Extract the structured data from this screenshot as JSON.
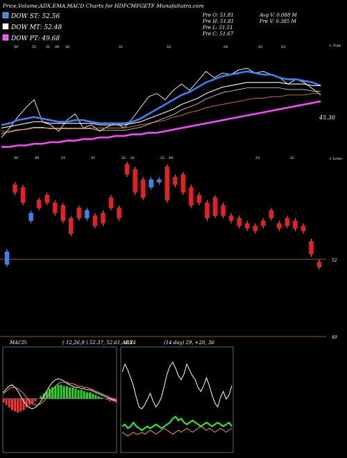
{
  "header": {
    "title": "Price,Volume,ADX,EMA,MACD Charts for HDFCMFGETF MunafaSutra.com",
    "legend": [
      {
        "label": "DOW ST: 52.56",
        "color": "#3b82f6"
      },
      {
        "label": "DOW MT: 52.48",
        "color": "#ffffff"
      },
      {
        "label": "DOW PT: 49.68",
        "color": "#ff44ff"
      }
    ],
    "stats": {
      "prev_open": "Pre  O: 51.81",
      "prev_high": "Pre  H: 51.81",
      "prev_low": "Pre  L: 51.51",
      "prev_close": "Pre  C: 51.67",
      "avg_volume": "Avg V: 0.088  M",
      "prev_volume": "Pre  V: 0.385 M"
    }
  },
  "chart_data": [
    {
      "type": "line",
      "name": "price-ema",
      "price_label": "45.30",
      "top_ticks": [
        "50",
        "52",
        "51",
        "50",
        "50",
        "51",
        "53",
        "54",
        "53",
        "53"
      ],
      "top_right_label": "< Tops",
      "bottom_ticks": [
        "50",
        "49",
        "51",
        "51",
        "52",
        "51",
        "52",
        "54",
        "53",
        "52"
      ],
      "bottom_right_label": "< Lows",
      "series": [
        {
          "role": "close",
          "color": "#ffffff",
          "values": [
            50.2,
            50.8,
            51.5,
            52.1,
            52.6,
            51.2,
            51.0,
            50.6,
            51.3,
            51.7,
            50.8,
            51.0,
            50.6,
            50.9,
            51.1,
            50.8,
            51.4,
            52.1,
            52.8,
            53.0,
            52.6,
            53.2,
            53.6,
            53.2,
            53.8,
            54.4,
            54.0,
            54.3,
            54.2,
            54.5,
            54.6,
            54.3,
            54.4,
            54.2,
            54.0,
            53.6,
            53.9,
            53.7,
            53.3,
            52.9
          ]
        },
        {
          "role": "ema-short",
          "color": "#3b82f6",
          "values": [
            51.0,
            51.1,
            51.3,
            51.4,
            51.5,
            51.4,
            51.3,
            51.2,
            51.2,
            51.3,
            51.3,
            51.2,
            51.1,
            51.1,
            51.1,
            51.1,
            51.2,
            51.4,
            51.7,
            52.0,
            52.3,
            52.6,
            52.9,
            53.1,
            53.4,
            53.7,
            53.9,
            54.1,
            54.2,
            54.3,
            54.4,
            54.3,
            54.2,
            54.2,
            54.0,
            53.9,
            53.9,
            53.8,
            53.7,
            53.5
          ]
        },
        {
          "role": "ema-mid",
          "color": "#ffffff",
          "values": [
            50.8,
            50.9,
            51.0,
            51.1,
            51.2,
            51.2,
            51.1,
            51.1,
            51.1,
            51.1,
            51.1,
            51.1,
            51.0,
            51.0,
            51.0,
            51.0,
            51.1,
            51.2,
            51.4,
            51.6,
            51.8,
            52.0,
            52.3,
            52.5,
            52.7,
            53.0,
            53.2,
            53.4,
            53.5,
            53.6,
            53.7,
            53.7,
            53.7,
            53.7,
            53.7,
            53.6,
            53.6,
            53.6,
            53.5,
            53.5
          ]
        },
        {
          "role": "ema-long",
          "color": "#c8721a",
          "values": [
            50.6,
            50.6,
            50.7,
            50.7,
            50.8,
            50.8,
            50.8,
            50.8,
            50.8,
            50.8,
            50.8,
            50.8,
            50.8,
            50.8,
            50.8,
            50.8,
            50.9,
            51.0,
            51.1,
            51.2,
            51.3,
            51.5,
            51.6,
            51.8,
            51.9,
            52.1,
            52.2,
            52.3,
            52.4,
            52.5,
            52.6,
            52.7,
            52.7,
            52.8,
            52.8,
            52.9,
            52.9,
            52.9,
            53.0,
            53.0
          ]
        },
        {
          "role": "dow-pt",
          "color": "#ff44ff",
          "values": [
            49.6,
            49.6,
            49.7,
            49.7,
            49.8,
            49.8,
            49.9,
            49.9,
            50.0,
            50.0,
            50.1,
            50.1,
            50.2,
            50.2,
            50.3,
            50.3,
            50.4,
            50.4,
            50.5,
            50.5,
            50.6,
            50.7,
            50.8,
            50.9,
            51.0,
            51.1,
            51.2,
            51.3,
            51.4,
            51.5,
            51.6,
            51.7,
            51.8,
            51.9,
            52.0,
            52.1,
            52.2,
            52.3,
            52.4,
            52.5
          ]
        }
      ]
    },
    {
      "type": "bar",
      "name": "candles",
      "level_labels": [
        {
          "text": "52",
          "value": 52.0
        },
        {
          "text": "49",
          "value": 49.0
        }
      ],
      "candles": [
        {
          "o": 51.8,
          "c": 52.3,
          "h": 52.4,
          "l": 51.7
        },
        {
          "o": 54.9,
          "c": 54.6,
          "h": 55.0,
          "l": 54.5
        },
        {
          "o": 54.8,
          "c": 54.2,
          "h": 54.9,
          "l": 54.1
        },
        {
          "o": 53.5,
          "c": 53.8,
          "h": 53.9,
          "l": 53.4
        },
        {
          "o": 54.3,
          "c": 54.0,
          "h": 54.4,
          "l": 53.9
        },
        {
          "o": 54.5,
          "c": 54.2,
          "h": 54.6,
          "l": 54.1
        },
        {
          "o": 54.2,
          "c": 53.8,
          "h": 54.3,
          "l": 53.7
        },
        {
          "o": 54.1,
          "c": 53.5,
          "h": 54.2,
          "l": 53.4
        },
        {
          "o": 53.6,
          "c": 53.0,
          "h": 53.7,
          "l": 52.9
        },
        {
          "o": 54.0,
          "c": 53.6,
          "h": 54.1,
          "l": 53.5
        },
        {
          "o": 53.6,
          "c": 53.9,
          "h": 54.0,
          "l": 53.5
        },
        {
          "o": 53.7,
          "c": 53.3,
          "h": 53.8,
          "l": 53.2
        },
        {
          "o": 53.8,
          "c": 53.4,
          "h": 53.9,
          "l": 53.3
        },
        {
          "o": 54.4,
          "c": 54.0,
          "h": 54.5,
          "l": 53.9
        },
        {
          "o": 54.0,
          "c": 53.6,
          "h": 54.1,
          "l": 53.5
        },
        {
          "o": 55.7,
          "c": 55.3,
          "h": 55.8,
          "l": 55.2
        },
        {
          "o": 55.5,
          "c": 54.6,
          "h": 55.6,
          "l": 54.5
        },
        {
          "o": 55.1,
          "c": 54.4,
          "h": 55.2,
          "l": 54.3
        },
        {
          "o": 54.8,
          "c": 55.1,
          "h": 55.2,
          "l": 54.7
        },
        {
          "o": 55.0,
          "c": 55.1,
          "h": 55.2,
          "l": 54.9
        },
        {
          "o": 55.6,
          "c": 54.3,
          "h": 55.7,
          "l": 54.2
        },
        {
          "o": 55.2,
          "c": 54.9,
          "h": 55.3,
          "l": 54.8
        },
        {
          "o": 55.3,
          "c": 54.6,
          "h": 55.4,
          "l": 54.5
        },
        {
          "o": 54.8,
          "c": 54.1,
          "h": 54.9,
          "l": 54.0
        },
        {
          "o": 54.5,
          "c": 54.2,
          "h": 54.6,
          "l": 54.1
        },
        {
          "o": 54.2,
          "c": 53.6,
          "h": 54.3,
          "l": 53.5
        },
        {
          "o": 54.4,
          "c": 53.7,
          "h": 54.5,
          "l": 53.6
        },
        {
          "o": 54.1,
          "c": 53.7,
          "h": 54.2,
          "l": 53.6
        },
        {
          "o": 53.7,
          "c": 53.5,
          "h": 53.8,
          "l": 53.4
        },
        {
          "o": 53.6,
          "c": 53.3,
          "h": 53.7,
          "l": 53.2
        },
        {
          "o": 53.4,
          "c": 53.2,
          "h": 53.5,
          "l": 53.1
        },
        {
          "o": 53.3,
          "c": 53.1,
          "h": 53.4,
          "l": 53.0
        },
        {
          "o": 53.5,
          "c": 53.3,
          "h": 53.6,
          "l": 53.2
        },
        {
          "o": 53.9,
          "c": 53.6,
          "h": 54.0,
          "l": 53.5
        },
        {
          "o": 53.4,
          "c": 53.2,
          "h": 53.5,
          "l": 53.1
        },
        {
          "o": 53.6,
          "c": 53.3,
          "h": 53.7,
          "l": 53.2
        },
        {
          "o": 53.5,
          "c": 53.2,
          "h": 53.6,
          "l": 53.1
        },
        {
          "o": 53.3,
          "c": 53.1,
          "h": 53.4,
          "l": 53.0
        },
        {
          "o": 52.7,
          "c": 52.2,
          "h": 52.8,
          "l": 52.1
        },
        {
          "o": 51.9,
          "c": 51.7,
          "h": 52.0,
          "l": 51.6
        }
      ]
    },
    {
      "type": "area",
      "name": "macd",
      "label": "MACD:",
      "params": "( 12,26,9 ) 52.37,  52.61,  -0.24",
      "histogram": [
        -0.3,
        -0.5,
        -0.7,
        -0.9,
        -1.0,
        -1.1,
        -1.0,
        -0.9,
        -0.7,
        -0.5,
        -0.4,
        -0.2,
        0.0,
        0.2,
        0.4,
        0.6,
        0.8,
        0.9,
        1.0,
        1.1,
        1.1,
        1.0,
        1.0,
        0.9,
        0.9,
        0.8,
        0.7,
        0.7,
        0.6,
        0.5,
        0.5,
        0.4,
        0.3,
        0.2,
        0.1,
        0.0,
        -0.1,
        -0.2,
        -0.2,
        -0.3
      ],
      "macd_line": [
        0.5,
        0.8,
        1.0,
        1.1,
        0.9,
        0.6,
        0.2,
        -0.2,
        -0.5,
        -0.7,
        -0.8,
        -0.7,
        -0.5,
        -0.2,
        0.2,
        0.6,
        1.0,
        1.3,
        1.5,
        1.6,
        1.5,
        1.4,
        1.2,
        1.1,
        1.0,
        0.9,
        0.9,
        0.8,
        0.8,
        0.7,
        0.7,
        0.6,
        0.5,
        0.4,
        0.3,
        0.2,
        0.1,
        0.0,
        -0.1,
        -0.2
      ],
      "signal_line": [
        0.4,
        0.6,
        0.8,
        0.9,
        0.9,
        0.8,
        0.6,
        0.4,
        0.1,
        -0.2,
        -0.4,
        -0.5,
        -0.5,
        -0.4,
        -0.2,
        0.1,
        0.4,
        0.7,
        1.0,
        1.2,
        1.3,
        1.3,
        1.3,
        1.2,
        1.2,
        1.1,
        1.0,
        1.0,
        0.9,
        0.9,
        0.8,
        0.7,
        0.6,
        0.5,
        0.4,
        0.3,
        0.2,
        0.1,
        0.0,
        -0.1
      ]
    },
    {
      "type": "line",
      "name": "adx",
      "label": "ADX",
      "params": "(14 day) 29,  +20,  36",
      "series": [
        {
          "role": "adx",
          "color": "#ffffff",
          "values": [
            40,
            44,
            41,
            37,
            33,
            27,
            22,
            21,
            23,
            26,
            29,
            25,
            22,
            24,
            27,
            33,
            39,
            43,
            45,
            42,
            38,
            36,
            39,
            44,
            41,
            38,
            36,
            32,
            30,
            33,
            37,
            33,
            28,
            24,
            22,
            27,
            30,
            26,
            28,
            33
          ]
        },
        {
          "role": "plus-di",
          "color": "#22ff22",
          "values": [
            12,
            13,
            11,
            12,
            14,
            12,
            11,
            10,
            11,
            12,
            11,
            12,
            13,
            12,
            11,
            12,
            13,
            14,
            16,
            17,
            15,
            16,
            14,
            13,
            14,
            15,
            14,
            13,
            12,
            13,
            14,
            13,
            12,
            13,
            14,
            13,
            12,
            13,
            14,
            12
          ]
        },
        {
          "role": "minus-di",
          "color": "#ff9933",
          "values": [
            9,
            8,
            7,
            8,
            9,
            8,
            8,
            9,
            8,
            9,
            10,
            9,
            8,
            9,
            10,
            11,
            10,
            9,
            8,
            9,
            10,
            9,
            10,
            11,
            10,
            9,
            10,
            11,
            12,
            11,
            10,
            11,
            10,
            9,
            10,
            11,
            10,
            9,
            10,
            11
          ]
        }
      ]
    }
  ]
}
